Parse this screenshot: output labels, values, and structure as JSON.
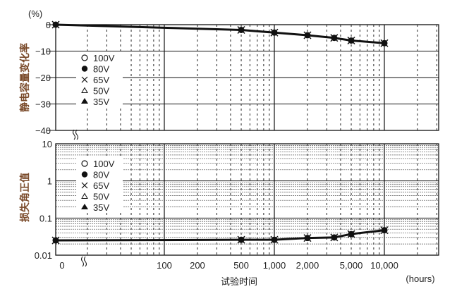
{
  "chart_data": [
    {
      "type": "line",
      "unit_label": "(%)",
      "ylabel": "静电容量变化率",
      "x": [
        0,
        500,
        1000,
        2000,
        3500,
        5000,
        10000
      ],
      "series": [
        {
          "values": [
            0,
            -2,
            -3,
            -4,
            -5,
            -6,
            -7
          ]
        }
      ],
      "ylim": [
        -40,
        0
      ],
      "yticks": [
        "0",
        "−10",
        "−20",
        "−30",
        "−40"
      ],
      "xscale": "log",
      "grid": true,
      "legend": [
        "100V",
        "80V",
        "65V",
        "50V",
        "35V"
      ],
      "legend_markers": [
        "open-circle",
        "filled-circle",
        "cross",
        "open-triangle",
        "filled-triangle"
      ],
      "legend_position": "left"
    },
    {
      "type": "line",
      "ylabel": "损失角正值",
      "x": [
        0,
        500,
        1000,
        2000,
        3500,
        5000,
        10000
      ],
      "series": [
        {
          "values": [
            0.025,
            0.026,
            0.026,
            0.029,
            0.03,
            0.037,
            0.047
          ]
        }
      ],
      "ylim": [
        0.01,
        10
      ],
      "yscale": "log",
      "yticks": [
        "10",
        "1",
        "0.1",
        "0.01"
      ],
      "xscale": "log",
      "xlabel": "试验时间",
      "xunit": "(hours)",
      "xticks": [
        "0",
        "100",
        "200",
        "500",
        "1,000",
        "2,000",
        "5,000",
        "10,000"
      ],
      "grid": true,
      "legend": [
        "100V",
        "80V",
        "65V",
        "50V",
        "35V"
      ],
      "legend_markers": [
        "open-circle",
        "filled-circle",
        "cross",
        "open-triangle",
        "filled-triangle"
      ],
      "legend_position": "left"
    }
  ]
}
